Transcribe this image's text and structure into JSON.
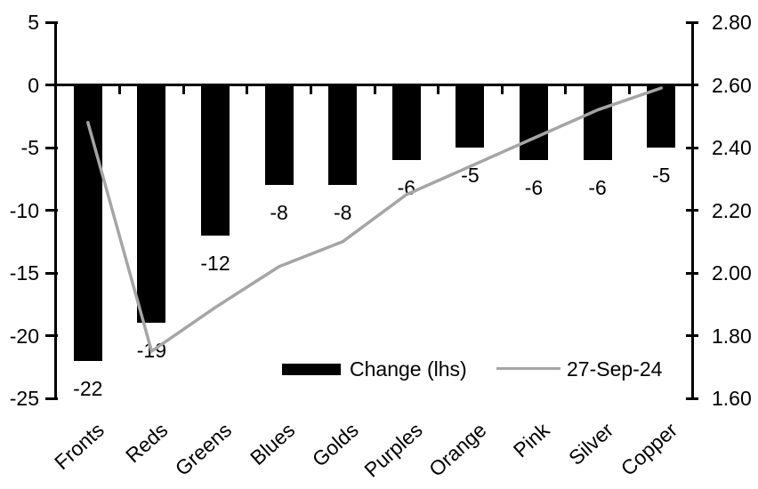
{
  "chart_data": {
    "type": "bar",
    "subtype": "dual-axis column chart with line overlay",
    "title": "",
    "categories": [
      "Fronts",
      "Reds",
      "Greens",
      "Blues",
      "Golds",
      "Purples",
      "Orange",
      "Pink",
      "Silver",
      "Copper"
    ],
    "series": [
      {
        "name": "Change (lhs)",
        "type": "bar",
        "axis": "left",
        "color": "#000000",
        "values": [
          -22,
          -19,
          -12,
          -8,
          -8,
          -6,
          -5,
          -6,
          -6,
          -5
        ],
        "data_labels": [
          "-22",
          "-19",
          "-12",
          "-8",
          "-8",
          "-6",
          "-5",
          "-6",
          "-6",
          "-5"
        ]
      },
      {
        "name": "27-Sep-24",
        "type": "line",
        "axis": "right",
        "color": "#a5a5a5",
        "values": [
          2.48,
          1.75,
          1.89,
          2.02,
          2.1,
          2.25,
          2.34,
          2.43,
          2.52,
          2.59
        ]
      }
    ],
    "left_axis": {
      "min": -25,
      "max": 5,
      "tick_step": 5,
      "tick_labels": [
        "5",
        "0",
        "-5",
        "-10",
        "-15",
        "-20",
        "-25"
      ]
    },
    "right_axis": {
      "min": 1.6,
      "max": 2.8,
      "tick_step": 0.2,
      "tick_labels": [
        "2.80",
        "2.60",
        "2.40",
        "2.20",
        "2.00",
        "1.80",
        "1.60"
      ]
    },
    "legend": {
      "position": "bottom-center",
      "entries": [
        {
          "label": "Change (lhs)",
          "swatch": "bar",
          "color": "#000000"
        },
        {
          "label": "27-Sep-24",
          "swatch": "line",
          "color": "#a5a5a5"
        }
      ]
    },
    "grid": "off"
  },
  "colors": {
    "background": "#ffffff",
    "axis": "#000000",
    "text": "#000000",
    "bar": "#000000",
    "line": "#a5a5a5"
  }
}
